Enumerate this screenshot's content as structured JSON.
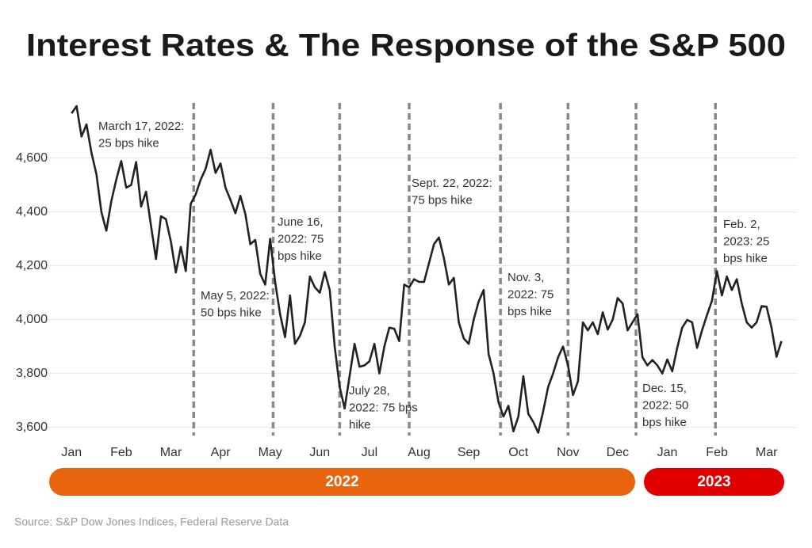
{
  "chart_data": {
    "type": "line",
    "title": "Interest Rates & The Response of the S&P 500",
    "source": "Source: S&P Dow Jones Indices, Federal Reserve Data",
    "xlim": [
      -0.5,
      14.5
    ],
    "xticks": [
      {
        "value": 0,
        "label": "Jan"
      },
      {
        "value": 1,
        "label": "Feb"
      },
      {
        "value": 2,
        "label": "Mar"
      },
      {
        "value": 3,
        "label": "Apr"
      },
      {
        "value": 4,
        "label": "May"
      },
      {
        "value": 5,
        "label": "Jun"
      },
      {
        "value": 6,
        "label": "Jul"
      },
      {
        "value": 7,
        "label": "Aug"
      },
      {
        "value": 8,
        "label": "Sep"
      },
      {
        "value": 9,
        "label": "Oct"
      },
      {
        "value": 10,
        "label": "Nov"
      },
      {
        "value": 11,
        "label": "Dec"
      },
      {
        "value": 12,
        "label": "Jan"
      },
      {
        "value": 13,
        "label": "Feb"
      },
      {
        "value": 14,
        "label": "Mar"
      }
    ],
    "ylim": [
      3540,
      4800
    ],
    "yticks": [
      {
        "value": 3600,
        "label": "3,600"
      },
      {
        "value": 3800,
        "label": "3,800"
      },
      {
        "value": 4000,
        "label": "4,000"
      },
      {
        "value": 4200,
        "label": "4,200"
      },
      {
        "value": 4400,
        "label": "4,400"
      },
      {
        "value": 4600,
        "label": "4,600"
      }
    ],
    "grid": true,
    "x": [
      0,
      0.1,
      0.2,
      0.3,
      0.4,
      0.5,
      0.6,
      0.7,
      0.8,
      0.9,
      1,
      1.1,
      1.2,
      1.3,
      1.4,
      1.5,
      1.6,
      1.7,
      1.8,
      1.9,
      2,
      2.1,
      2.2,
      2.3,
      2.4,
      2.5,
      2.6,
      2.7,
      2.8,
      2.9,
      3,
      3.1,
      3.2,
      3.3,
      3.4,
      3.5,
      3.6,
      3.7,
      3.8,
      3.9,
      4,
      4.1,
      4.2,
      4.3,
      4.4,
      4.5,
      4.6,
      4.7,
      4.8,
      4.9,
      5,
      5.1,
      5.2,
      5.3,
      5.4,
      5.5,
      5.6,
      5.7,
      5.8,
      5.9,
      6,
      6.1,
      6.2,
      6.3,
      6.4,
      6.5,
      6.6,
      6.7,
      6.8,
      6.9,
      7,
      7.1,
      7.2,
      7.3,
      7.4,
      7.5,
      7.6,
      7.7,
      7.8,
      7.9,
      8,
      8.1,
      8.2,
      8.3,
      8.4,
      8.5,
      8.6,
      8.7,
      8.8,
      8.9,
      9,
      9.1,
      9.2,
      9.3,
      9.4,
      9.5,
      9.6,
      9.7,
      9.8,
      9.9,
      10,
      10.1,
      10.2,
      10.3,
      10.4,
      10.5,
      10.6,
      10.7,
      10.8,
      10.9,
      11,
      11.1,
      11.2,
      11.3,
      11.4,
      11.5,
      11.6,
      11.7,
      11.8,
      11.9,
      12,
      12.1,
      12.2,
      12.3,
      12.4,
      12.5,
      12.6,
      12.7,
      12.8,
      12.9,
      13,
      13.1,
      13.2,
      13.3,
      13.4,
      13.5,
      13.6,
      13.7,
      13.8,
      13.9,
      14,
      14.1,
      14.2,
      14.3
    ],
    "series": [
      {
        "color": "#222222",
        "values": [
          4766,
          4793,
          4680,
          4725,
          4620,
          4540,
          4400,
          4330,
          4440,
          4520,
          4589,
          4490,
          4500,
          4585,
          4420,
          4475,
          4348,
          4225,
          4384,
          4373,
          4290,
          4175,
          4270,
          4180,
          4430,
          4465,
          4520,
          4560,
          4631,
          4545,
          4580,
          4490,
          4445,
          4395,
          4460,
          4392,
          4280,
          4296,
          4170,
          4130,
          4300,
          4140,
          4020,
          3935,
          4090,
          3910,
          3940,
          3990,
          4160,
          4120,
          4100,
          4177,
          4110,
          3900,
          3750,
          3670,
          3790,
          3910,
          3825,
          3830,
          3845,
          3910,
          3800,
          3900,
          3970,
          3966,
          3920,
          4130,
          4120,
          4150,
          4140,
          4140,
          4210,
          4280,
          4305,
          4228,
          4130,
          4155,
          3990,
          3930,
          3910,
          4000,
          4067,
          4110,
          3873,
          3800,
          3693,
          3640,
          3680,
          3585,
          3640,
          3790,
          3650,
          3620,
          3580,
          3660,
          3750,
          3800,
          3860,
          3900,
          3830,
          3720,
          3770,
          3990,
          3960,
          3990,
          3946,
          4027,
          3963,
          4000,
          4080,
          4060,
          3960,
          3990,
          4020,
          3860,
          3830,
          3850,
          3830,
          3800,
          3852,
          3808,
          3895,
          3970,
          3999,
          3990,
          3895,
          3960,
          4017,
          4070,
          4180,
          4090,
          4160,
          4110,
          4150,
          4060,
          3990,
          3970,
          3990,
          4050,
          4048,
          3970,
          3862,
          3920
        ]
      }
    ],
    "events": [
      {
        "x": 2.46,
        "label": [
          "March 17, 2022:",
          "25 bps hike"
        ]
      },
      {
        "x": 4.06,
        "label": [
          "May 5, 2022:",
          "50 bps hike"
        ]
      },
      {
        "x": 5.4,
        "label": [
          "June 16,",
          "2022: 75",
          "bps hike"
        ]
      },
      {
        "x": 6.8,
        "label": [
          "July 28,",
          "2022: 75 bps",
          "hike"
        ]
      },
      {
        "x": 8.64,
        "label": [
          "Sept. 22, 2022:",
          "75 bps hike"
        ]
      },
      {
        "x": 10.0,
        "label": [
          "Nov. 3,",
          "2022: 75",
          "bps hike"
        ]
      },
      {
        "x": 11.37,
        "label": [
          "Dec. 15,",
          "2022: 50",
          "bps hike"
        ]
      },
      {
        "x": 12.97,
        "label": [
          "Feb. 2,",
          "2023: 25",
          "bps hike"
        ]
      }
    ],
    "periods": [
      {
        "label": "2022",
        "color": "#e8650e"
      },
      {
        "label": "2023",
        "color": "#e00000"
      }
    ]
  }
}
